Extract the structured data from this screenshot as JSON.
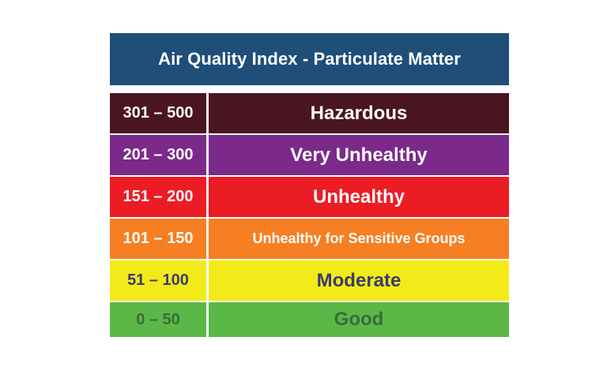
{
  "title": "Air Quality Index - Particulate Matter",
  "levels": [
    {
      "range": "301 – 500",
      "label": "Hazardous",
      "color": "#4a1522",
      "text_color": "#ffffff"
    },
    {
      "range": "201 – 300",
      "label": "Very Unhealthy",
      "color": "#7b2a8a",
      "text_color": "#ffffff"
    },
    {
      "range": "151 – 200",
      "label": "Unhealthy",
      "color": "#ec1c24",
      "text_color": "#ffffff"
    },
    {
      "range": "101 – 150",
      "label": "Unhealthy for Sensitive Groups",
      "color": "#f57f22",
      "text_color": "#ffffff"
    },
    {
      "range": "51 – 100",
      "label": "Moderate",
      "color": "#f3ea1a",
      "text_color": "#3a3d6b"
    },
    {
      "range": "0 – 50",
      "label": "Good",
      "color": "#5cb846",
      "text_color": "#3a6b3a"
    }
  ]
}
